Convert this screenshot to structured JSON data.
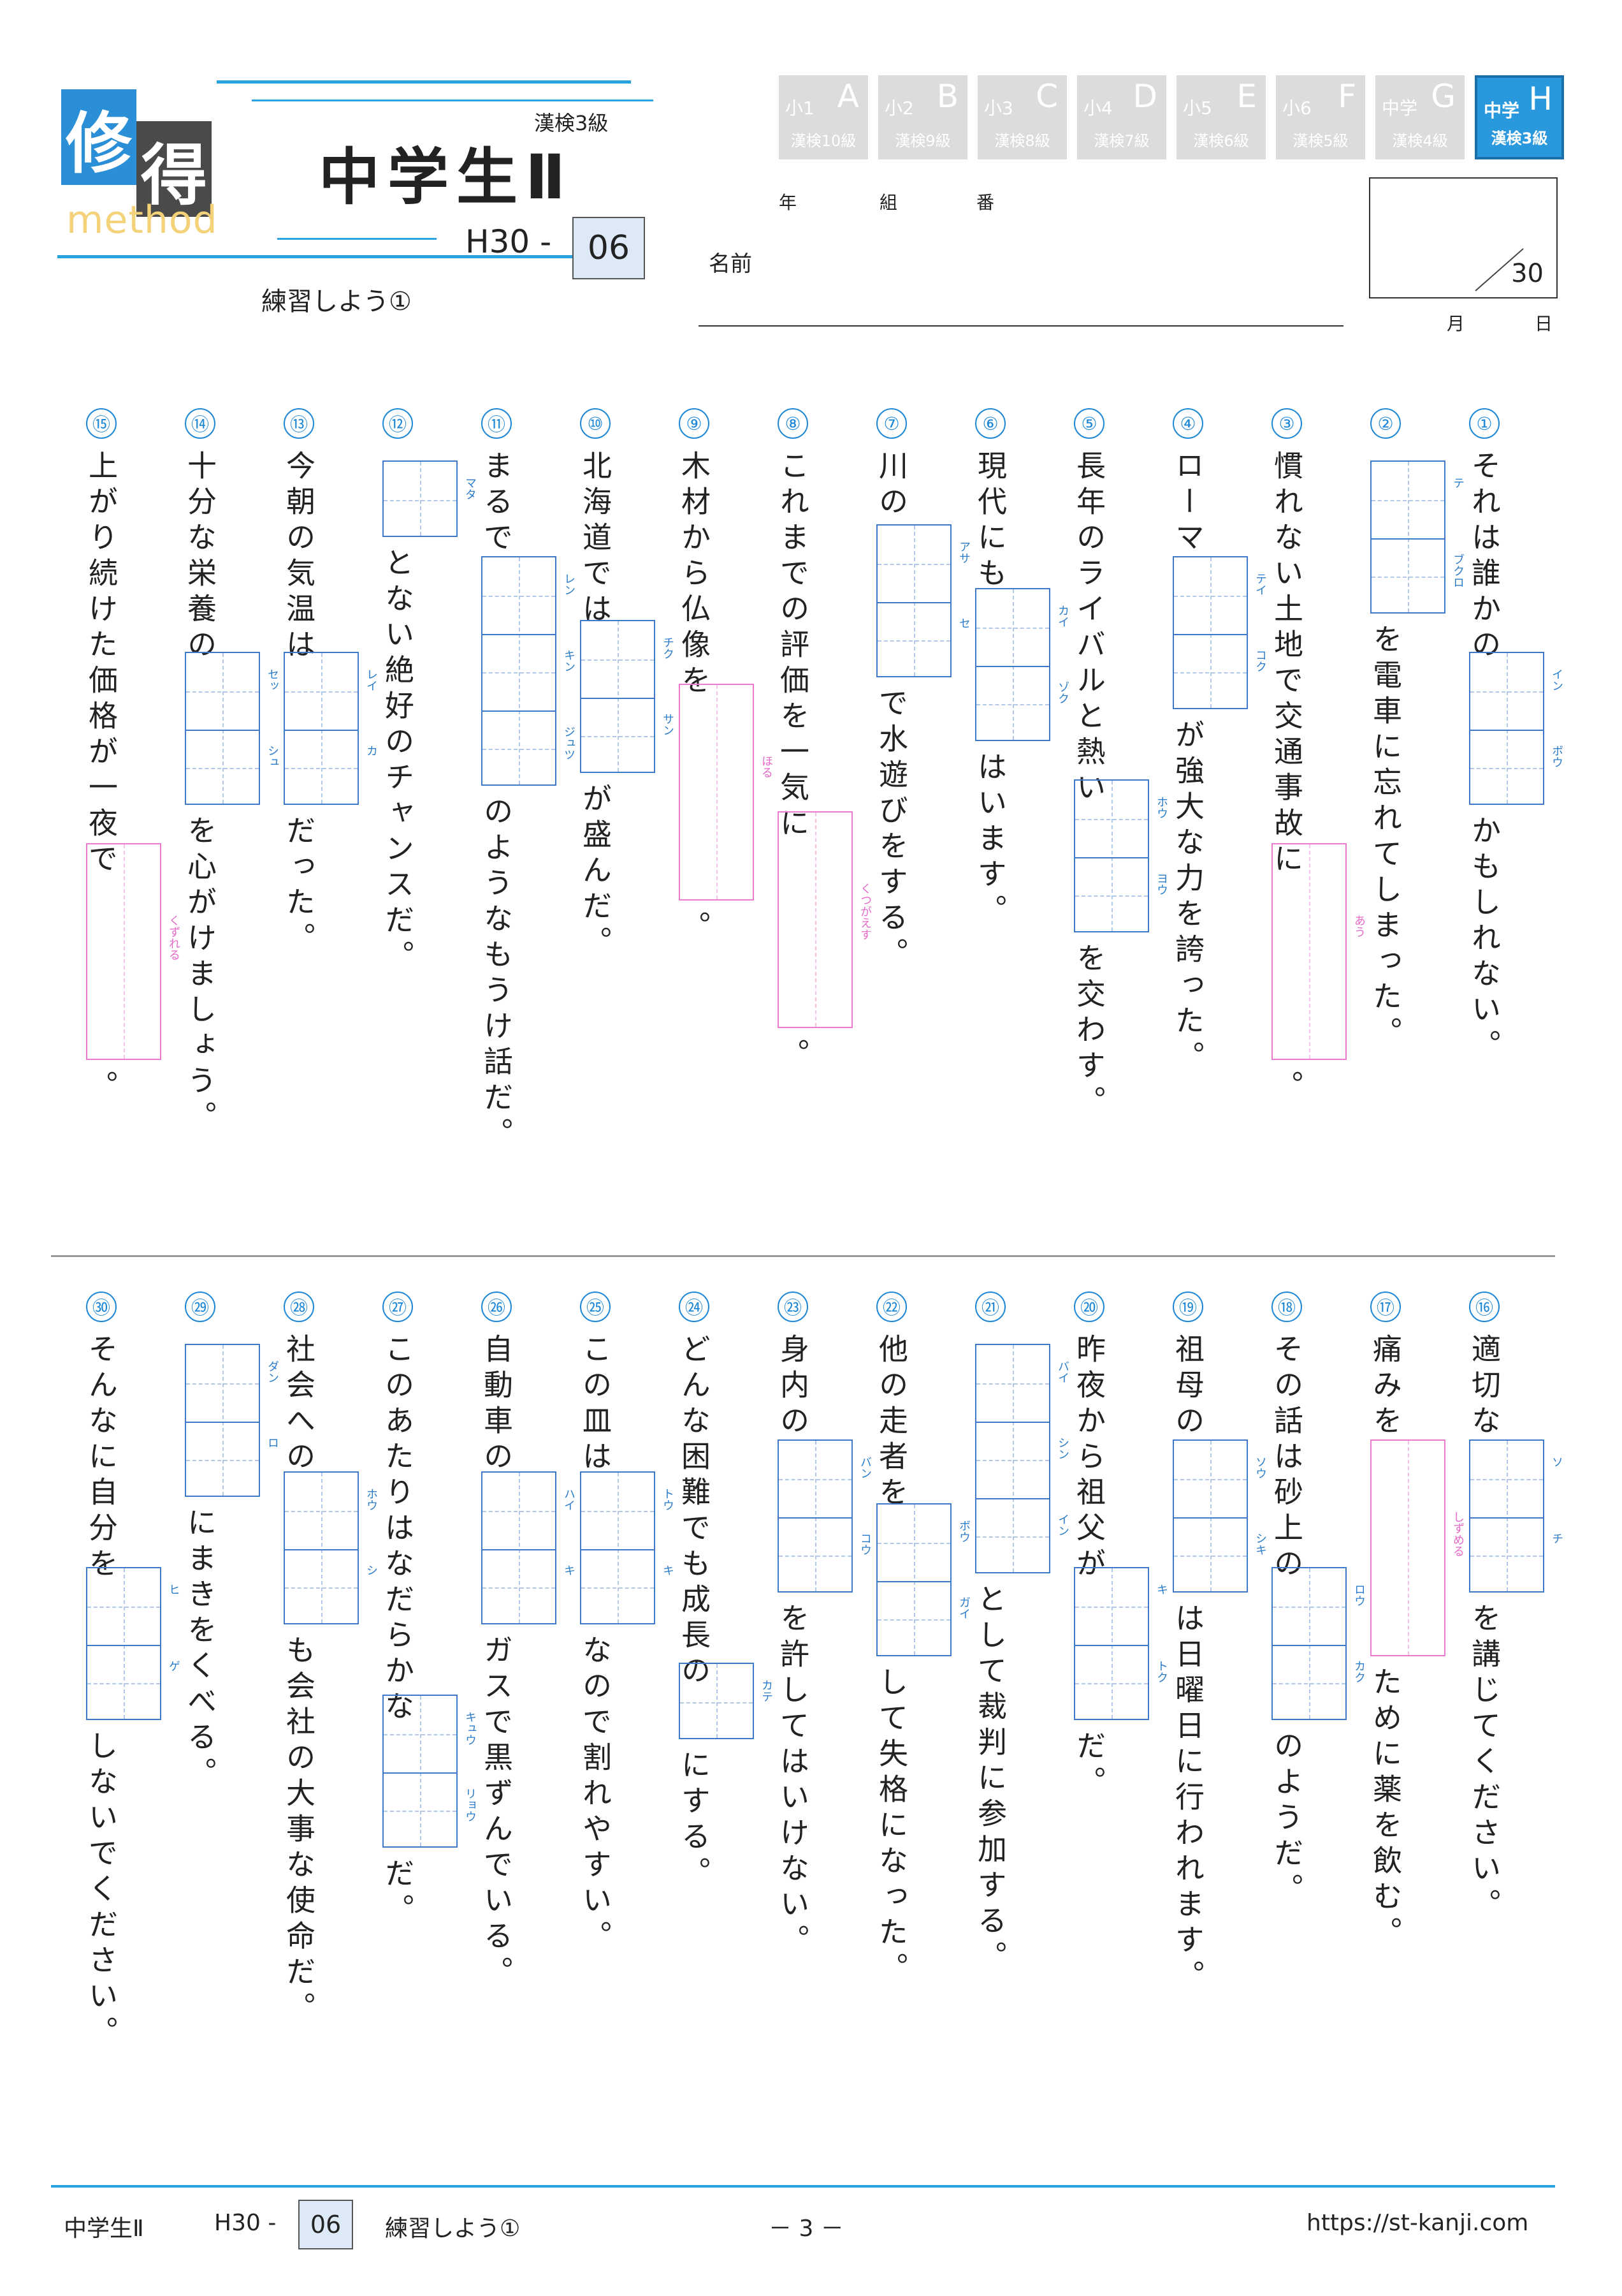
{
  "header": {
    "logo_char1": "修",
    "logo_char2": "得",
    "logo_sub": "method",
    "title": "中学生Ⅱ",
    "kentei_level": "漢検3級",
    "code_prefix": "H30 -",
    "code_number": "06",
    "subtitle": "練習しよう①"
  },
  "levels": [
    {
      "grade": "小1",
      "letter": "A",
      "kanken": "漢検10級",
      "active": false
    },
    {
      "grade": "小2",
      "letter": "B",
      "kanken": "漢検9級",
      "active": false
    },
    {
      "grade": "小3",
      "letter": "C",
      "kanken": "漢検8級",
      "active": false
    },
    {
      "grade": "小4",
      "letter": "D",
      "kanken": "漢検7級",
      "active": false
    },
    {
      "grade": "小5",
      "letter": "E",
      "kanken": "漢検6級",
      "active": false
    },
    {
      "grade": "小6",
      "letter": "F",
      "kanken": "漢検5級",
      "active": false
    },
    {
      "grade": "中学",
      "letter": "G",
      "kanken": "漢検4級",
      "active": false
    },
    {
      "grade": "中学",
      "letter": "H",
      "kanken": "漢検3級",
      "active": true
    }
  ],
  "student": {
    "year_label": "年",
    "class_label": "組",
    "number_label": "番",
    "name_label": "名前",
    "score_total": "30",
    "month_label": "月",
    "day_label": "日"
  },
  "questions": [
    {
      "n": "①",
      "parts": [
        {
          "t": "それは誰かの"
        },
        {
          "box": "blue",
          "cells": 2,
          "reading": [
            "イン",
            "ボウ"
          ]
        },
        {
          "t": "かもしれない。"
        }
      ]
    },
    {
      "n": "②",
      "parts": [
        {
          "box": "blue",
          "cells": 2,
          "reading": [
            "テ",
            "ブクロ"
          ]
        },
        {
          "t": "を電車に忘れてしまった。"
        }
      ]
    },
    {
      "n": "③",
      "parts": [
        {
          "t": "慣れない土地で交通事故に"
        },
        {
          "box": "pink",
          "cells": 3,
          "reading": [
            "あう"
          ]
        },
        {
          "t": "。"
        }
      ]
    },
    {
      "n": "④",
      "parts": [
        {
          "t": "ローマ"
        },
        {
          "box": "blue",
          "cells": 2,
          "reading": [
            "テイ",
            "コク"
          ]
        },
        {
          "t": "が強大な力を誇った。"
        }
      ]
    },
    {
      "n": "⑤",
      "parts": [
        {
          "t": "長年のライバルと熱い"
        },
        {
          "box": "blue",
          "cells": 2,
          "reading": [
            "ホウ",
            "ヨウ"
          ]
        },
        {
          "t": "を交わす。"
        }
      ]
    },
    {
      "n": "⑥",
      "parts": [
        {
          "t": "現代にも"
        },
        {
          "box": "blue",
          "cells": 2,
          "reading": [
            "カイ",
            "ゾク"
          ]
        },
        {
          "t": "はいます。"
        }
      ]
    },
    {
      "n": "⑦",
      "parts": [
        {
          "t": "川の"
        },
        {
          "box": "blue",
          "cells": 2,
          "reading": [
            "アサ",
            "セ"
          ]
        },
        {
          "t": "で水遊びをする。"
        }
      ]
    },
    {
      "n": "⑧",
      "parts": [
        {
          "t": "これまでの評価を一気に"
        },
        {
          "box": "pink",
          "cells": 3,
          "reading": [
            "くつがえす"
          ]
        },
        {
          "t": "。"
        }
      ]
    },
    {
      "n": "⑨",
      "parts": [
        {
          "t": "木材から仏像を"
        },
        {
          "box": "pink",
          "cells": 3,
          "reading": [
            "ほる"
          ]
        },
        {
          "t": "。"
        }
      ]
    },
    {
      "n": "⑩",
      "parts": [
        {
          "t": "北海道では"
        },
        {
          "box": "blue",
          "cells": 2,
          "reading": [
            "チク",
            "サン"
          ]
        },
        {
          "t": "が盛んだ。"
        }
      ]
    },
    {
      "n": "⑪",
      "parts": [
        {
          "t": "まるで"
        },
        {
          "box": "blue",
          "cells": 3,
          "reading": [
            "レン",
            "キン",
            "ジュツ"
          ]
        },
        {
          "t": "のようなもうけ話だ。"
        }
      ]
    },
    {
      "n": "⑫",
      "parts": [
        {
          "box": "blue",
          "cells": 1,
          "reading": [
            "マタ"
          ]
        },
        {
          "t": "とない絶好のチャンスだ。"
        }
      ]
    },
    {
      "n": "⑬",
      "parts": [
        {
          "t": "今朝の気温は"
        },
        {
          "box": "blue",
          "cells": 2,
          "reading": [
            "レイ",
            "カ"
          ]
        },
        {
          "t": "だった。"
        }
      ]
    },
    {
      "n": "⑭",
      "parts": [
        {
          "t": "十分な栄養の"
        },
        {
          "box": "blue",
          "cells": 2,
          "reading": [
            "セッ",
            "シュ"
          ]
        },
        {
          "t": "を心がけましょう。"
        }
      ]
    },
    {
      "n": "⑮",
      "parts": [
        {
          "t": "上がり続けた価格が一夜で"
        },
        {
          "box": "pink",
          "cells": 3,
          "reading": [
            "くずれる"
          ]
        },
        {
          "t": "。"
        }
      ]
    },
    {
      "n": "⑯",
      "parts": [
        {
          "t": "適切な"
        },
        {
          "box": "blue",
          "cells": 2,
          "reading": [
            "ソ",
            "チ"
          ]
        },
        {
          "t": "を講じてください。"
        }
      ]
    },
    {
      "n": "⑰",
      "parts": [
        {
          "t": "痛みを"
        },
        {
          "box": "pink",
          "cells": 3,
          "reading": [
            "しずめる"
          ]
        },
        {
          "t": "ために薬を飲む。"
        }
      ]
    },
    {
      "n": "⑱",
      "parts": [
        {
          "t": "その話は砂上の"
        },
        {
          "box": "blue",
          "cells": 2,
          "reading": [
            "ロウ",
            "カク"
          ]
        },
        {
          "t": "のようだ。"
        }
      ]
    },
    {
      "n": "⑲",
      "parts": [
        {
          "t": "祖母の"
        },
        {
          "box": "blue",
          "cells": 2,
          "reading": [
            "ソウ",
            "シキ"
          ]
        },
        {
          "t": "は日曜日に行われます。"
        }
      ]
    },
    {
      "n": "⑳",
      "parts": [
        {
          "t": "昨夜から祖父が"
        },
        {
          "box": "blue",
          "cells": 2,
          "reading": [
            "キ",
            "トク"
          ]
        },
        {
          "t": "だ。"
        }
      ]
    },
    {
      "n": "㉑",
      "parts": [
        {
          "box": "blue",
          "cells": 3,
          "reading": [
            "バイ",
            "シン",
            "イン"
          ]
        },
        {
          "t": "として裁判に参加する。"
        }
      ]
    },
    {
      "n": "㉒",
      "parts": [
        {
          "t": "他の走者を"
        },
        {
          "box": "blue",
          "cells": 2,
          "reading": [
            "ボウ",
            "ガイ"
          ]
        },
        {
          "t": "して失格になった。"
        }
      ]
    },
    {
      "n": "㉓",
      "parts": [
        {
          "t": "身内の"
        },
        {
          "box": "blue",
          "cells": 2,
          "reading": [
            "バン",
            "コウ"
          ]
        },
        {
          "t": "を許してはいけない。"
        }
      ]
    },
    {
      "n": "㉔",
      "parts": [
        {
          "t": "どんな困難でも成長の"
        },
        {
          "box": "blue",
          "cells": 1,
          "reading": [
            "カテ"
          ]
        },
        {
          "t": "にする。"
        }
      ]
    },
    {
      "n": "㉕",
      "parts": [
        {
          "t": "この皿は"
        },
        {
          "box": "blue",
          "cells": 2,
          "reading": [
            "トウ",
            "キ"
          ]
        },
        {
          "t": "なので割れやすい。"
        }
      ]
    },
    {
      "n": "㉖",
      "parts": [
        {
          "t": "自動車の"
        },
        {
          "box": "blue",
          "cells": 2,
          "reading": [
            "ハイ",
            "キ"
          ]
        },
        {
          "t": "ガスで黒ずんでいる。"
        }
      ]
    },
    {
      "n": "㉗",
      "parts": [
        {
          "t": "このあたりはなだらかな"
        },
        {
          "box": "blue",
          "cells": 2,
          "reading": [
            "キュウ",
            "リョウ"
          ]
        },
        {
          "t": "だ。"
        }
      ]
    },
    {
      "n": "㉘",
      "parts": [
        {
          "t": "社会への"
        },
        {
          "box": "blue",
          "cells": 2,
          "reading": [
            "ホウ",
            "シ"
          ]
        },
        {
          "t": "も会社の大事な使命だ。"
        }
      ]
    },
    {
      "n": "㉙",
      "parts": [
        {
          "box": "blue",
          "cells": 2,
          "reading": [
            "ダン",
            "ロ"
          ]
        },
        {
          "t": "にまきをくべる。"
        }
      ]
    },
    {
      "n": "㉚",
      "parts": [
        {
          "t": "そんなに自分を"
        },
        {
          "box": "blue",
          "cells": 2,
          "reading": [
            "ヒ",
            "ゲ"
          ]
        },
        {
          "t": "しないでください。"
        }
      ]
    }
  ],
  "footer": {
    "title": "中学生Ⅱ",
    "code_prefix": "H30 -",
    "code_number": "06",
    "subtitle": "練習しよう①",
    "page": "－ 3 －",
    "url": "https://st-kanji.com"
  }
}
